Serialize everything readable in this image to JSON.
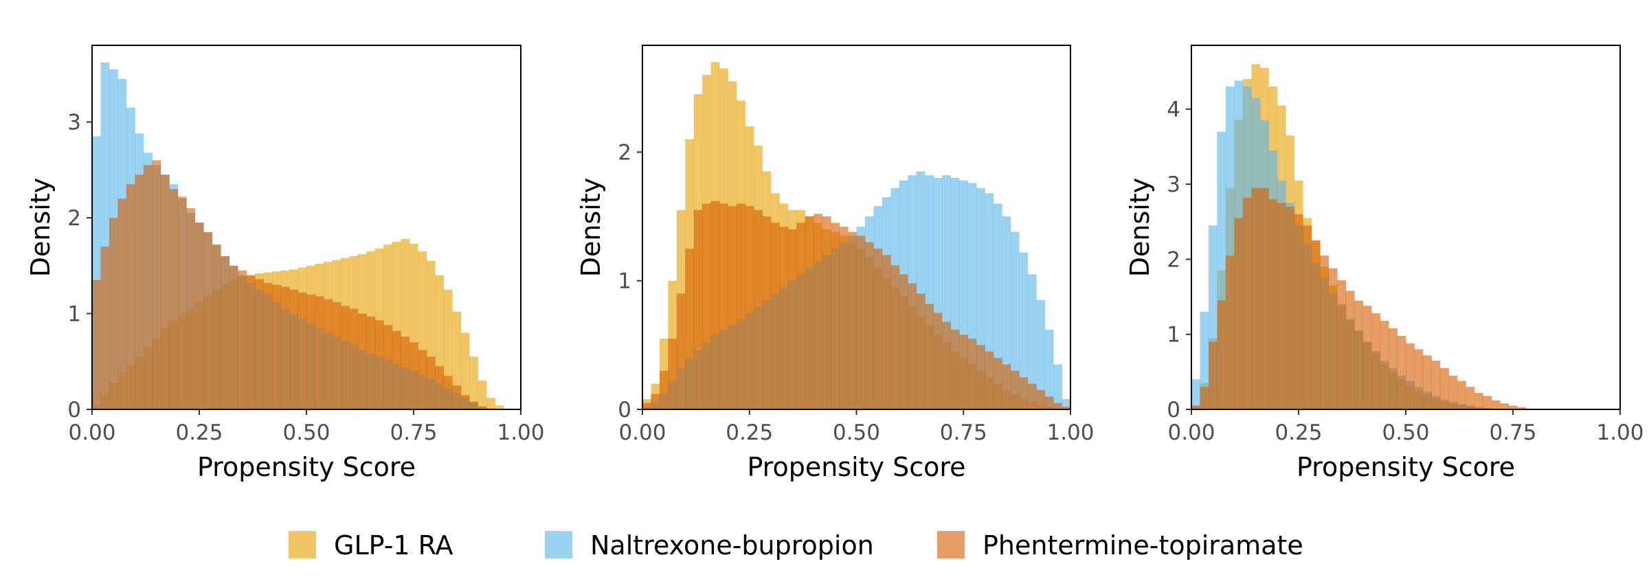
{
  "legend": {
    "position": "bottom",
    "entries": [
      {
        "label": "GLP-1 RA",
        "color": "#E69F00"
      },
      {
        "label": "Naltrexone-bupropion",
        "color": "#56B4E9"
      },
      {
        "label": "Phentermine-topiramate",
        "color": "#D55E00"
      }
    ]
  },
  "chart_data": [
    {
      "type": "histogram",
      "xlabel": "Propensity Score",
      "ylabel": "Density",
      "xlim": [
        0,
        1
      ],
      "ylim": [
        0,
        3.8
      ],
      "xticks": [
        "0.00",
        "0.25",
        "0.50",
        "0.75",
        "1.00"
      ],
      "yticks": [
        "0",
        "1",
        "2",
        "3"
      ],
      "bin_start": 0.0,
      "bin_width": 0.02,
      "alpha": 0.6,
      "series": [
        {
          "name": "GLP-1 RA",
          "color": "#E69F00",
          "values": [
            0.05,
            0.15,
            0.28,
            0.38,
            0.46,
            0.55,
            0.65,
            0.75,
            0.85,
            0.93,
            1.0,
            1.05,
            1.12,
            1.18,
            1.25,
            1.3,
            1.35,
            1.38,
            1.4,
            1.42,
            1.43,
            1.44,
            1.45,
            1.46,
            1.48,
            1.5,
            1.52,
            1.54,
            1.56,
            1.58,
            1.6,
            1.62,
            1.65,
            1.68,
            1.72,
            1.75,
            1.78,
            1.73,
            1.65,
            1.55,
            1.4,
            1.25,
            1.02,
            0.8,
            0.55,
            0.3,
            0.12,
            0.04
          ]
        },
        {
          "name": "Naltrexone-bupropion",
          "color": "#56B4E9",
          "values": [
            2.85,
            3.62,
            3.55,
            3.45,
            3.15,
            2.88,
            2.68,
            2.55,
            2.45,
            2.35,
            2.2,
            2.05,
            1.95,
            1.85,
            1.72,
            1.6,
            1.5,
            1.4,
            1.32,
            1.25,
            1.2,
            1.12,
            1.05,
            1.0,
            0.95,
            0.9,
            0.85,
            0.8,
            0.76,
            0.72,
            0.68,
            0.62,
            0.58,
            0.55,
            0.52,
            0.48,
            0.44,
            0.4,
            0.36,
            0.32,
            0.27,
            0.22,
            0.17,
            0.12,
            0.07,
            0.03,
            0.01,
            0.0
          ]
        },
        {
          "name": "Phentermine-topiramate",
          "color": "#D55E00",
          "values": [
            1.35,
            1.7,
            2.0,
            2.2,
            2.35,
            2.45,
            2.55,
            2.6,
            2.45,
            2.3,
            2.22,
            2.1,
            1.95,
            1.85,
            1.72,
            1.6,
            1.5,
            1.45,
            1.4,
            1.36,
            1.32,
            1.3,
            1.28,
            1.25,
            1.22,
            1.2,
            1.18,
            1.15,
            1.12,
            1.08,
            1.05,
            1.0,
            0.97,
            0.93,
            0.88,
            0.82,
            0.76,
            0.7,
            0.62,
            0.55,
            0.45,
            0.35,
            0.25,
            0.15,
            0.08,
            0.03,
            0.01,
            0.0
          ]
        }
      ]
    },
    {
      "type": "histogram",
      "xlabel": "Propensity Score",
      "ylabel": "Density",
      "xlim": [
        0,
        1
      ],
      "ylim": [
        0,
        2.83
      ],
      "xticks": [
        "0.00",
        "0.25",
        "0.50",
        "0.75",
        "1.00"
      ],
      "yticks": [
        "0",
        "1",
        "2"
      ],
      "bin_start": 0.0,
      "bin_width": 0.02,
      "alpha": 0.6,
      "series": [
        {
          "name": "GLP-1 RA",
          "color": "#E69F00",
          "values": [
            0.08,
            0.2,
            0.55,
            1.0,
            1.55,
            2.1,
            2.45,
            2.6,
            2.7,
            2.65,
            2.55,
            2.4,
            2.2,
            2.05,
            1.85,
            1.68,
            1.6,
            1.55,
            1.55,
            1.5,
            1.45,
            1.4,
            1.38,
            1.35,
            1.3,
            1.25,
            1.18,
            1.1,
            1.02,
            0.95,
            0.88,
            0.8,
            0.72,
            0.65,
            0.58,
            0.52,
            0.45,
            0.4,
            0.35,
            0.3,
            0.25,
            0.2,
            0.15,
            0.12,
            0.09,
            0.06,
            0.04,
            0.02,
            0.01,
            0.0
          ]
        },
        {
          "name": "Naltrexone-bupropion",
          "color": "#56B4E9",
          "values": [
            0.02,
            0.06,
            0.12,
            0.22,
            0.32,
            0.4,
            0.46,
            0.52,
            0.58,
            0.62,
            0.66,
            0.7,
            0.75,
            0.8,
            0.85,
            0.9,
            0.95,
            1.0,
            1.05,
            1.1,
            1.15,
            1.2,
            1.25,
            1.3,
            1.35,
            1.42,
            1.5,
            1.58,
            1.65,
            1.72,
            1.78,
            1.82,
            1.85,
            1.82,
            1.8,
            1.82,
            1.8,
            1.78,
            1.76,
            1.72,
            1.68,
            1.6,
            1.5,
            1.38,
            1.22,
            1.05,
            0.85,
            0.62,
            0.35,
            0.08
          ]
        },
        {
          "name": "Phentermine-topiramate",
          "color": "#D55E00",
          "values": [
            0.05,
            0.12,
            0.3,
            0.55,
            0.9,
            1.25,
            1.55,
            1.6,
            1.62,
            1.6,
            1.58,
            1.6,
            1.58,
            1.55,
            1.5,
            1.45,
            1.42,
            1.4,
            1.45,
            1.5,
            1.52,
            1.5,
            1.45,
            1.42,
            1.38,
            1.35,
            1.3,
            1.25,
            1.2,
            1.12,
            1.05,
            0.98,
            0.9,
            0.82,
            0.75,
            0.68,
            0.62,
            0.58,
            0.55,
            0.5,
            0.45,
            0.4,
            0.35,
            0.3,
            0.25,
            0.2,
            0.15,
            0.1,
            0.05,
            0.02
          ]
        }
      ]
    },
    {
      "type": "histogram",
      "xlabel": "Propensity Score",
      "ylabel": "Density",
      "xlim": [
        0,
        1
      ],
      "ylim": [
        0,
        4.85
      ],
      "xticks": [
        "0.00",
        "0.25",
        "0.50",
        "0.75",
        "1.00"
      ],
      "yticks": [
        "0",
        "1",
        "2",
        "3",
        "4"
      ],
      "bin_start": 0.0,
      "bin_width": 0.02,
      "alpha": 0.6,
      "series": [
        {
          "name": "GLP-1 RA",
          "color": "#E69F00",
          "values": [
            0.05,
            0.35,
            0.95,
            1.85,
            2.95,
            3.85,
            4.4,
            4.6,
            4.55,
            4.3,
            4.05,
            3.65,
            3.05,
            2.55,
            2.25,
            1.9,
            1.65,
            1.4,
            1.2,
            1.05,
            0.9,
            0.75,
            0.6,
            0.5,
            0.4,
            0.32,
            0.25,
            0.2,
            0.15,
            0.11,
            0.08,
            0.06,
            0.04,
            0.03,
            0.02,
            0.01,
            0.01,
            0.0,
            0.0,
            0.0,
            0.0,
            0.0,
            0.0,
            0.0,
            0.0,
            0.0,
            0.0,
            0.0,
            0.0,
            0.0
          ]
        },
        {
          "name": "Naltrexone-bupropion",
          "color": "#56B4E9",
          "values": [
            0.4,
            1.3,
            2.45,
            3.7,
            4.3,
            4.38,
            4.3,
            4.15,
            3.85,
            3.45,
            3.05,
            2.75,
            2.45,
            2.2,
            1.95,
            1.75,
            1.55,
            1.38,
            1.2,
            1.05,
            0.9,
            0.78,
            0.65,
            0.55,
            0.45,
            0.38,
            0.3,
            0.24,
            0.18,
            0.13,
            0.1,
            0.07,
            0.05,
            0.03,
            0.02,
            0.01,
            0.01,
            0.0,
            0.0,
            0.0,
            0.0,
            0.0,
            0.0,
            0.0,
            0.0,
            0.0,
            0.0,
            0.0,
            0.0,
            0.0
          ]
        },
        {
          "name": "Phentermine-topiramate",
          "color": "#D55E00",
          "values": [
            0.05,
            0.3,
            0.9,
            1.45,
            2.05,
            2.55,
            2.82,
            2.95,
            2.95,
            2.8,
            2.75,
            2.7,
            2.6,
            2.45,
            2.25,
            2.05,
            1.88,
            1.72,
            1.58,
            1.45,
            1.38,
            1.28,
            1.18,
            1.08,
            0.98,
            0.88,
            0.8,
            0.72,
            0.65,
            0.55,
            0.45,
            0.38,
            0.3,
            0.22,
            0.18,
            0.12,
            0.08,
            0.05,
            0.03,
            0.01,
            0.0,
            0.0,
            0.0,
            0.0,
            0.0,
            0.0,
            0.0,
            0.0,
            0.0,
            0.0
          ]
        }
      ]
    }
  ]
}
